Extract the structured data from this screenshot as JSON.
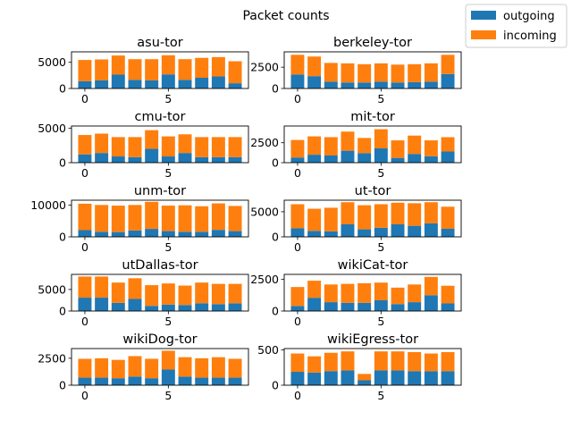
{
  "title": "Packet counts",
  "legend": {
    "placement": "upper-right",
    "entries": [
      {
        "name": "outgoing",
        "color": "#1f77b4"
      },
      {
        "name": "incoming",
        "color": "#ff7f0e"
      }
    ]
  },
  "chart_data": [
    {
      "type": "bar",
      "title": "asu-tor",
      "x": [
        0,
        1,
        2,
        3,
        4,
        5,
        6,
        7,
        8,
        9
      ],
      "xticks": [
        0,
        5
      ],
      "yticks": [
        0,
        5000
      ],
      "ylim": [
        0,
        7000
      ],
      "series": [
        {
          "name": "outgoing",
          "values": [
            1400,
            1550,
            2650,
            1650,
            1550,
            2700,
            1650,
            2050,
            2300,
            1000
          ]
        },
        {
          "name": "incoming",
          "values": [
            4050,
            4000,
            3650,
            3950,
            4050,
            3650,
            3950,
            3800,
            3700,
            4200
          ]
        }
      ]
    },
    {
      "type": "bar",
      "title": "berkeley-tor",
      "x": [
        0,
        1,
        2,
        3,
        4,
        5,
        6,
        7,
        8,
        9
      ],
      "xticks": [
        0,
        5
      ],
      "yticks": [
        0,
        2500
      ],
      "ylim": [
        0,
        4300
      ],
      "series": [
        {
          "name": "outgoing",
          "values": [
            1650,
            1450,
            800,
            700,
            700,
            800,
            700,
            750,
            800,
            1700
          ]
        },
        {
          "name": "incoming",
          "values": [
            2300,
            2300,
            2200,
            2250,
            2150,
            2150,
            2100,
            2100,
            2150,
            2250
          ]
        }
      ]
    },
    {
      "type": "bar",
      "title": "cmu-tor",
      "x": [
        0,
        1,
        2,
        3,
        4,
        5,
        6,
        7,
        8,
        9
      ],
      "xticks": [
        0,
        5
      ],
      "yticks": [
        0,
        5000
      ],
      "ylim": [
        0,
        5300
      ],
      "series": [
        {
          "name": "outgoing",
          "values": [
            1200,
            1400,
            900,
            800,
            2000,
            900,
            1400,
            800,
            800,
            800
          ]
        },
        {
          "name": "incoming",
          "values": [
            2800,
            2800,
            2800,
            2900,
            2700,
            2900,
            2700,
            2900,
            2900,
            2900
          ]
        }
      ]
    },
    {
      "type": "bar",
      "title": "mit-tor",
      "x": [
        0,
        1,
        2,
        3,
        4,
        5,
        6,
        7,
        8,
        9
      ],
      "xticks": [
        0,
        5
      ],
      "yticks": [
        0,
        2500
      ],
      "ylim": [
        0,
        4600
      ],
      "series": [
        {
          "name": "outgoing",
          "values": [
            650,
            1000,
            900,
            1500,
            1200,
            1800,
            600,
            1100,
            800,
            1400
          ]
        },
        {
          "name": "incoming",
          "values": [
            2200,
            2300,
            2300,
            2400,
            1900,
            2400,
            2200,
            2300,
            2000,
            1800
          ]
        }
      ]
    },
    {
      "type": "bar",
      "title": "unm-tor",
      "x": [
        0,
        1,
        2,
        3,
        4,
        5,
        6,
        7,
        8,
        9
      ],
      "xticks": [
        0,
        5
      ],
      "yticks": [
        0,
        10000
      ],
      "ylim": [
        0,
        11500
      ],
      "series": [
        {
          "name": "outgoing",
          "values": [
            2100,
            1600,
            1500,
            2000,
            2500,
            1800,
            1600,
            1600,
            2200,
            1800
          ]
        },
        {
          "name": "incoming",
          "values": [
            8300,
            8400,
            8300,
            8000,
            8500,
            8000,
            8300,
            8000,
            8300,
            7900
          ]
        }
      ]
    },
    {
      "type": "bar",
      "title": "ut-tor",
      "x": [
        0,
        1,
        2,
        3,
        4,
        5,
        6,
        7,
        8,
        9
      ],
      "xticks": [
        0,
        5
      ],
      "yticks": [
        0,
        5000
      ],
      "ylim": [
        0,
        7300
      ],
      "series": [
        {
          "name": "outgoing",
          "values": [
            1700,
            1200,
            1100,
            2500,
            1500,
            1800,
            2500,
            2200,
            2700,
            1600
          ]
        },
        {
          "name": "incoming",
          "values": [
            4800,
            4400,
            4700,
            4400,
            4800,
            4700,
            4300,
            4500,
            4200,
            4400
          ]
        }
      ]
    },
    {
      "type": "bar",
      "title": "utDallas-tor",
      "x": [
        0,
        1,
        2,
        3,
        4,
        5,
        6,
        7,
        8,
        9
      ],
      "xticks": [
        0,
        5
      ],
      "yticks": [
        0,
        5000
      ],
      "ylim": [
        0,
        8500
      ],
      "series": [
        {
          "name": "outgoing",
          "values": [
            3100,
            3100,
            1900,
            2800,
            1200,
            1500,
            1400,
            1800,
            1600,
            1800
          ]
        },
        {
          "name": "incoming",
          "values": [
            4900,
            4900,
            4700,
            4800,
            4800,
            4900,
            4500,
            4800,
            4700,
            4500
          ]
        }
      ]
    },
    {
      "type": "bar",
      "title": "wikiCat-tor",
      "x": [
        0,
        1,
        2,
        3,
        4,
        5,
        6,
        7,
        8,
        9
      ],
      "xticks": [
        0,
        5
      ],
      "yticks": [
        0,
        2500
      ],
      "ylim": [
        0,
        2900
      ],
      "series": [
        {
          "name": "outgoing",
          "values": [
            400,
            1050,
            700,
            650,
            650,
            850,
            550,
            700,
            1250,
            600
          ]
        },
        {
          "name": "incoming",
          "values": [
            1500,
            1350,
            1400,
            1500,
            1550,
            1400,
            1300,
            1400,
            1450,
            1400
          ]
        }
      ]
    },
    {
      "type": "bar",
      "title": "wikiDog-tor",
      "x": [
        0,
        1,
        2,
        3,
        4,
        5,
        6,
        7,
        8,
        9
      ],
      "xticks": [
        0,
        5
      ],
      "yticks": [
        0,
        2500
      ],
      "ylim": [
        0,
        3400
      ],
      "series": [
        {
          "name": "outgoing",
          "values": [
            700,
            700,
            650,
            800,
            650,
            1450,
            800,
            700,
            700,
            700
          ]
        },
        {
          "name": "incoming",
          "values": [
            1750,
            1800,
            1700,
            1900,
            1800,
            1750,
            1800,
            1800,
            1900,
            1750
          ]
        }
      ]
    },
    {
      "type": "bar",
      "title": "wikiEgress-tor",
      "x": [
        0,
        1,
        2,
        3,
        4,
        5,
        6,
        7,
        8,
        9
      ],
      "xticks": [
        0,
        5
      ],
      "yticks": [
        0,
        500
      ],
      "ylim": [
        0,
        520
      ],
      "series": [
        {
          "name": "outgoing",
          "values": [
            190,
            180,
            200,
            210,
            70,
            210,
            210,
            200,
            200,
            200
          ]
        },
        {
          "name": "incoming",
          "values": [
            260,
            230,
            260,
            270,
            90,
            270,
            270,
            270,
            250,
            270
          ]
        }
      ]
    }
  ]
}
